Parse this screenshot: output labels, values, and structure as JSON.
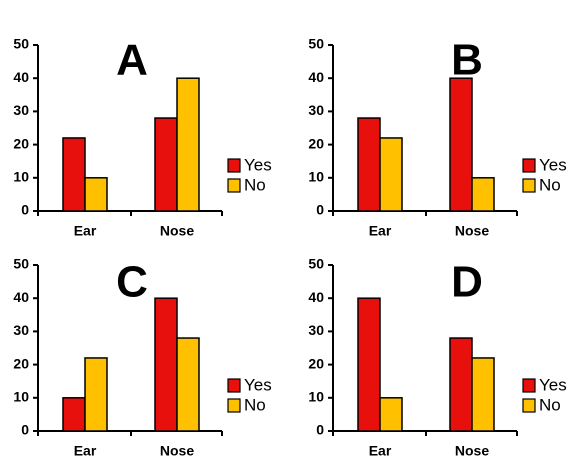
{
  "colors": {
    "yes": "#e8100c",
    "no": "#ffc000",
    "axis": "#000000",
    "bar_stroke": "#000000"
  },
  "chart_data": [
    {
      "type": "bar",
      "panel_label": "A",
      "categories": [
        "Ear",
        "Nose"
      ],
      "series": [
        {
          "name": "Yes",
          "values": [
            22,
            28
          ]
        },
        {
          "name": "No",
          "values": [
            10,
            40
          ]
        }
      ],
      "ylim": [
        0,
        50
      ],
      "yticks": [
        0,
        10,
        20,
        30,
        40,
        50
      ],
      "grid": false,
      "legend_position": "right"
    },
    {
      "type": "bar",
      "panel_label": "B",
      "categories": [
        "Ear",
        "Nose"
      ],
      "series": [
        {
          "name": "Yes",
          "values": [
            28,
            40
          ]
        },
        {
          "name": "No",
          "values": [
            22,
            10
          ]
        }
      ],
      "ylim": [
        0,
        50
      ],
      "yticks": [
        0,
        10,
        20,
        30,
        40,
        50
      ],
      "grid": false,
      "legend_position": "right"
    },
    {
      "type": "bar",
      "panel_label": "C",
      "categories": [
        "Ear",
        "Nose"
      ],
      "series": [
        {
          "name": "Yes",
          "values": [
            10,
            40
          ]
        },
        {
          "name": "No",
          "values": [
            22,
            28
          ]
        }
      ],
      "ylim": [
        0,
        50
      ],
      "yticks": [
        0,
        10,
        20,
        30,
        40,
        50
      ],
      "grid": false,
      "legend_position": "right"
    },
    {
      "type": "bar",
      "panel_label": "D",
      "categories": [
        "Ear",
        "Nose"
      ],
      "series": [
        {
          "name": "Yes",
          "values": [
            40,
            28
          ]
        },
        {
          "name": "No",
          "values": [
            10,
            22
          ]
        }
      ],
      "ylim": [
        0,
        50
      ],
      "yticks": [
        0,
        10,
        20,
        30,
        40,
        50
      ],
      "grid": false,
      "legend_position": "right"
    }
  ]
}
